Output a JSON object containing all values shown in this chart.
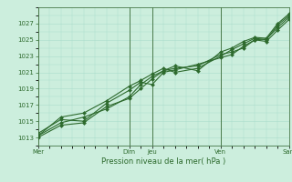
{
  "title": "",
  "xlabel": "Pression niveau de la mer( hPa )",
  "ylabel": "",
  "bg_color": "#cceedd",
  "grid_color": "#aaddcc",
  "line_color": "#2d6a2d",
  "marker_color": "#2d6a2d",
  "ylim": [
    1012,
    1029
  ],
  "yticks": [
    1013,
    1015,
    1017,
    1019,
    1021,
    1023,
    1025,
    1027
  ],
  "day_labels": [
    "Mer",
    "Dim",
    "Jeu",
    "Ven",
    "Sam"
  ],
  "day_positions": [
    0,
    48,
    60,
    96,
    132
  ],
  "total_hours": 132,
  "lines": [
    [
      0,
      1013.2,
      12,
      1014.8,
      24,
      1015.5,
      36,
      1016.5,
      48,
      1018.0,
      54,
      1019.5,
      60,
      1020.5,
      66,
      1021.2,
      72,
      1021.5,
      84,
      1021.8,
      96,
      1023.2,
      102,
      1023.5,
      108,
      1024.0,
      114,
      1025.0,
      120,
      1025.1,
      126,
      1026.5,
      132,
      1027.8
    ],
    [
      0,
      1013.2,
      12,
      1015.5,
      24,
      1016.0,
      36,
      1017.5,
      48,
      1019.3,
      54,
      1020.0,
      60,
      1020.8,
      66,
      1021.5,
      72,
      1021.0,
      84,
      1021.5,
      96,
      1023.0,
      102,
      1023.8,
      108,
      1024.5,
      114,
      1025.2,
      120,
      1025.0,
      126,
      1026.8,
      132,
      1028.0
    ],
    [
      0,
      1013.5,
      12,
      1015.2,
      24,
      1015.0,
      36,
      1017.2,
      48,
      1018.8,
      54,
      1019.8,
      60,
      1019.5,
      66,
      1021.0,
      72,
      1021.3,
      84,
      1022.0,
      96,
      1022.8,
      102,
      1023.2,
      108,
      1024.2,
      114,
      1025.0,
      120,
      1024.8,
      126,
      1026.2,
      132,
      1027.5
    ],
    [
      0,
      1013.0,
      12,
      1014.5,
      24,
      1014.8,
      36,
      1016.8,
      48,
      1017.8,
      54,
      1019.0,
      60,
      1020.2,
      66,
      1021.2,
      72,
      1021.8,
      84,
      1021.2,
      96,
      1023.5,
      102,
      1024.0,
      108,
      1024.8,
      114,
      1025.3,
      120,
      1025.2,
      126,
      1027.0,
      132,
      1028.2
    ]
  ]
}
